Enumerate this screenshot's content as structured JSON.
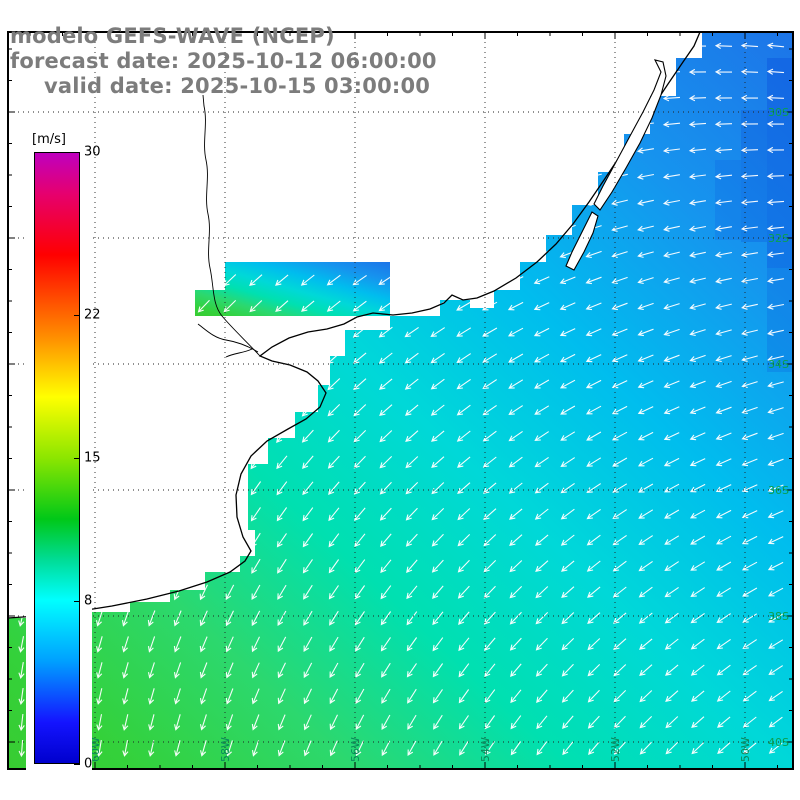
{
  "header": {
    "model_line": "modelo GEFS-WAVE (NCEP)",
    "forecast_line": "forecast date: 2025-10-12 06:00:00",
    "valid_line": "valid date: 2025-10-15 03:00:00",
    "text_color": "#7c7c7c"
  },
  "colorbar": {
    "unit_label": "[m/s]",
    "min": 0,
    "max": 30,
    "tick_values": [
      30,
      22,
      15,
      8,
      0
    ],
    "stops": [
      {
        "value": 30,
        "color": "#bf00bf"
      },
      {
        "value": 28,
        "color": "#e6006e"
      },
      {
        "value": 25,
        "color": "#ff0000"
      },
      {
        "value": 21,
        "color": "#ff8c00"
      },
      {
        "value": 18,
        "color": "#ffff00"
      },
      {
        "value": 15,
        "color": "#8ce600"
      },
      {
        "value": 12,
        "color": "#00c818"
      },
      {
        "value": 10,
        "color": "#00dc96"
      },
      {
        "value": 8,
        "color": "#00ffff"
      },
      {
        "value": 5,
        "color": "#00a0ff"
      },
      {
        "value": 2,
        "color": "#1414ff"
      },
      {
        "value": 0,
        "color": "#0000cd"
      }
    ]
  },
  "axes": {
    "lon_labels": [
      "60W",
      "58W",
      "56W",
      "54W",
      "52W",
      "50W"
    ],
    "lat_labels": [
      "30S",
      "32S",
      "34S",
      "36S",
      "38S",
      "40S"
    ],
    "lon_label_color": "#0a8a5a",
    "lat_label_color": "#0aa050"
  },
  "chart_data": {
    "type": "heatmap",
    "title": "modelo GEFS-WAVE (NCEP)",
    "variable": "10 m wind speed with direction arrows",
    "units": "m/s",
    "forecast_date": "2025-10-12 06:00:00",
    "valid_date": "2025-10-15 03:00:00",
    "colorbar_range": [
      0,
      30
    ],
    "colorbar_ticks": [
      0,
      8,
      15,
      22,
      30
    ],
    "x_axis": {
      "label": "longitude",
      "ticks": [
        "60W",
        "58W",
        "56W",
        "54W",
        "52W",
        "50W"
      ]
    },
    "y_axis": {
      "label": "latitude",
      "ticks": [
        "30S",
        "32S",
        "34S",
        "36S",
        "38S",
        "40S"
      ]
    },
    "region": "SW Atlantic: southern Brazil, Uruguay, Rio de la Plata, Buenos Aires coast; land masked white with black coastline",
    "field_summary": [
      {
        "region": "northeast offshore (Brazil)",
        "wind_speed_ms": 6,
        "color": "blue",
        "arrow_direction": "westward"
      },
      {
        "region": "central offshore",
        "wind_speed_ms": 9,
        "color": "cyan",
        "arrow_direction": "southwestward"
      },
      {
        "region": "Rio de la Plata mouth",
        "wind_speed_ms": 9,
        "color": "cyan",
        "arrow_direction": "southwestward"
      },
      {
        "region": "southwest near Argentine coast",
        "wind_speed_ms": 12,
        "color": "green",
        "arrow_direction": "southward"
      }
    ],
    "overlay": "white wind-direction arrows on regular grid over water only",
    "grid": "dotted black graticule every 2 degrees, tick marks on frame",
    "legend_position": "left vertical colorbar on white panel"
  }
}
